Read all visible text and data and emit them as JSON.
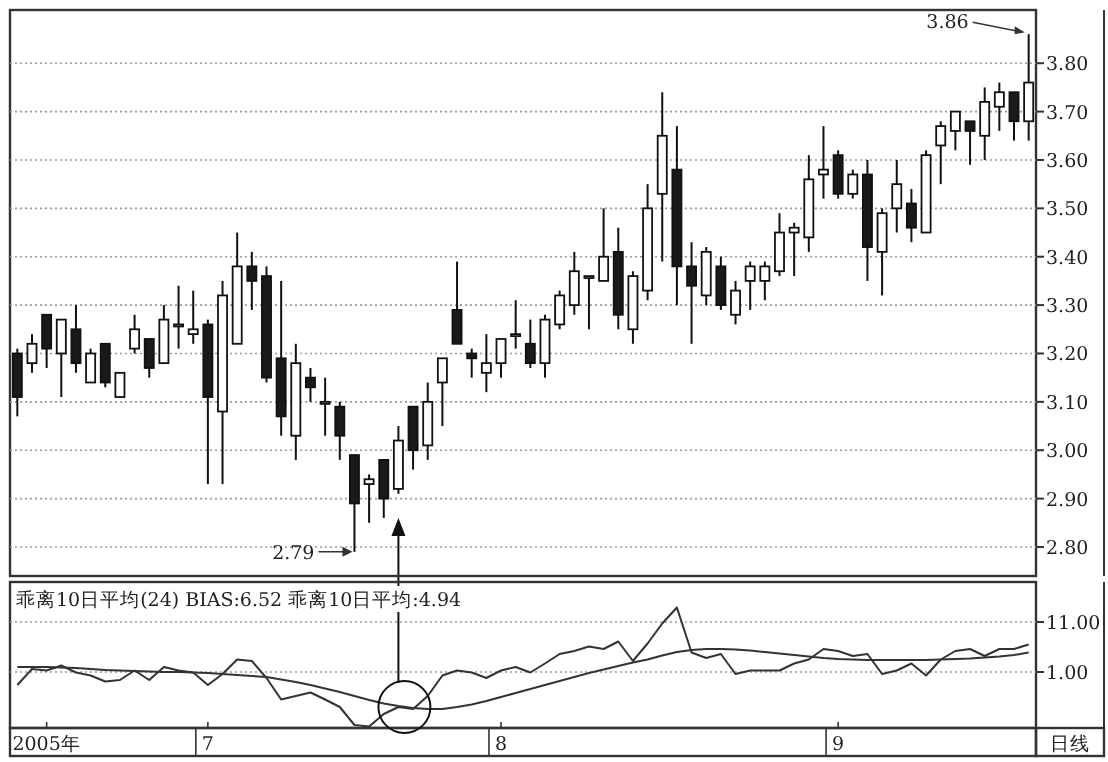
{
  "chart_data": [
    {
      "type": "candlestick",
      "categories": [
        null,
        null,
        null,
        null,
        null,
        null,
        null,
        null,
        null,
        null,
        null,
        null,
        null,
        null,
        null,
        null,
        null,
        null,
        null,
        null,
        null,
        null,
        null,
        null,
        null,
        null,
        null,
        null,
        null,
        null,
        null,
        null,
        null,
        null,
        null,
        null,
        null,
        null,
        null,
        null,
        null,
        null,
        null,
        null,
        null,
        null,
        null,
        null,
        null,
        null,
        null,
        null,
        null,
        null,
        null,
        null,
        null,
        null,
        null,
        null,
        null,
        null,
        null,
        null,
        null,
        null,
        null,
        null,
        null,
        null
      ],
      "ohlc": [
        [
          3.2,
          3.21,
          3.07,
          3.11
        ],
        [
          3.18,
          3.24,
          3.16,
          3.22
        ],
        [
          3.28,
          3.28,
          3.17,
          3.21
        ],
        [
          3.2,
          3.27,
          3.11,
          3.27
        ],
        [
          3.25,
          3.3,
          3.16,
          3.18
        ],
        [
          3.14,
          3.21,
          3.14,
          3.2
        ],
        [
          3.22,
          3.22,
          3.13,
          3.14
        ],
        [
          3.11,
          3.16,
          3.11,
          3.16
        ],
        [
          3.21,
          3.28,
          3.2,
          3.25
        ],
        [
          3.23,
          3.23,
          3.15,
          3.17
        ],
        [
          3.18,
          3.3,
          3.18,
          3.27
        ],
        [
          3.26,
          3.34,
          3.21,
          3.26
        ],
        [
          3.24,
          3.33,
          3.22,
          3.25
        ],
        [
          3.26,
          3.27,
          2.93,
          3.11
        ],
        [
          3.08,
          3.35,
          2.93,
          3.32
        ],
        [
          3.22,
          3.45,
          3.22,
          3.38
        ],
        [
          3.38,
          3.41,
          3.29,
          3.35
        ],
        [
          3.36,
          3.38,
          3.14,
          3.15
        ],
        [
          3.19,
          3.35,
          3.03,
          3.07
        ],
        [
          3.03,
          3.22,
          2.98,
          3.18
        ],
        [
          3.15,
          3.17,
          3.1,
          3.13
        ],
        [
          3.1,
          3.15,
          3.03,
          3.1
        ],
        [
          3.09,
          3.1,
          2.98,
          3.03
        ],
        [
          2.99,
          2.99,
          2.79,
          2.89
        ],
        [
          2.93,
          2.95,
          2.85,
          2.94
        ],
        [
          2.98,
          2.98,
          2.86,
          2.9
        ],
        [
          2.92,
          3.05,
          2.91,
          3.02
        ],
        [
          3.09,
          3.09,
          2.96,
          3.0
        ],
        [
          3.01,
          3.14,
          2.98,
          3.1
        ],
        [
          3.14,
          3.19,
          3.05,
          3.19
        ],
        [
          3.29,
          3.39,
          3.22,
          3.22
        ],
        [
          3.2,
          3.21,
          3.15,
          3.19
        ],
        [
          3.16,
          3.24,
          3.12,
          3.18
        ],
        [
          3.18,
          3.23,
          3.15,
          3.23
        ],
        [
          3.24,
          3.31,
          3.21,
          3.24
        ],
        [
          3.22,
          3.27,
          3.17,
          3.18
        ],
        [
          3.18,
          3.28,
          3.15,
          3.27
        ],
        [
          3.26,
          3.33,
          3.25,
          3.32
        ],
        [
          3.3,
          3.41,
          3.28,
          3.37
        ],
        [
          3.36,
          3.36,
          3.25,
          3.36
        ],
        [
          3.35,
          3.5,
          3.35,
          3.4
        ],
        [
          3.41,
          3.46,
          3.25,
          3.28
        ],
        [
          3.25,
          3.37,
          3.22,
          3.36
        ],
        [
          3.33,
          3.55,
          3.31,
          3.5
        ],
        [
          3.53,
          3.74,
          3.39,
          3.65
        ],
        [
          3.58,
          3.67,
          3.3,
          3.38
        ],
        [
          3.38,
          3.43,
          3.22,
          3.34
        ],
        [
          3.32,
          3.42,
          3.3,
          3.41
        ],
        [
          3.38,
          3.4,
          3.29,
          3.3
        ],
        [
          3.28,
          3.35,
          3.26,
          3.33
        ],
        [
          3.35,
          3.39,
          3.29,
          3.38
        ],
        [
          3.35,
          3.39,
          3.31,
          3.38
        ],
        [
          3.37,
          3.49,
          3.36,
          3.45
        ],
        [
          3.45,
          3.47,
          3.36,
          3.46
        ],
        [
          3.44,
          3.61,
          3.41,
          3.56
        ],
        [
          3.57,
          3.67,
          3.52,
          3.58
        ],
        [
          3.61,
          3.62,
          3.52,
          3.53
        ],
        [
          3.53,
          3.58,
          3.52,
          3.57
        ],
        [
          3.57,
          3.6,
          3.35,
          3.42
        ],
        [
          3.41,
          3.5,
          3.32,
          3.49
        ],
        [
          3.5,
          3.6,
          3.45,
          3.55
        ],
        [
          3.51,
          3.54,
          3.43,
          3.46
        ],
        [
          3.45,
          3.62,
          3.45,
          3.61
        ],
        [
          3.63,
          3.68,
          3.55,
          3.67
        ],
        [
          3.66,
          3.7,
          3.62,
          3.7
        ],
        [
          3.68,
          3.68,
          3.59,
          3.66
        ],
        [
          3.65,
          3.75,
          3.6,
          3.72
        ],
        [
          3.71,
          3.76,
          3.66,
          3.74
        ],
        [
          3.74,
          3.74,
          3.64,
          3.68
        ],
        [
          3.68,
          3.86,
          3.64,
          3.76
        ]
      ],
      "ylim": [
        2.74,
        3.91
      ],
      "yticks": [
        {
          "value": 2.8,
          "label": "2.80"
        },
        {
          "value": 2.9,
          "label": "2.90"
        },
        {
          "value": 3.0,
          "label": "3.00"
        },
        {
          "value": 3.1,
          "label": "3.10"
        },
        {
          "value": 3.2,
          "label": "3.20"
        },
        {
          "value": 3.3,
          "label": "3.30"
        },
        {
          "value": 3.4,
          "label": "3.40"
        },
        {
          "value": 3.5,
          "label": "3.50"
        },
        {
          "value": 3.6,
          "label": "3.60"
        },
        {
          "value": 3.7,
          "label": "3.70"
        },
        {
          "value": 3.8,
          "label": "3.80"
        }
      ],
      "grid": "y",
      "tick_labels": "y",
      "annotations": [
        "3.86",
        "2.79"
      ]
    },
    {
      "type": "line",
      "title": "乖离10日平均(24)  BIAS:6.52  乖离10日平均:4.94",
      "xlabel": "日线",
      "categories": [
        null,
        null,
        "2005年",
        null,
        null,
        null,
        null,
        null,
        null,
        null,
        null,
        null,
        null,
        "7",
        null,
        null,
        null,
        null,
        null,
        null,
        null,
        null,
        null,
        null,
        null,
        null,
        null,
        null,
        null,
        null,
        null,
        null,
        null,
        "8",
        null,
        null,
        null,
        null,
        null,
        null,
        null,
        null,
        null,
        null,
        null,
        null,
        null,
        null,
        null,
        null,
        null,
        null,
        null,
        null,
        null,
        null,
        "9",
        null,
        null,
        null,
        null,
        null,
        null,
        null,
        null,
        null,
        null,
        null,
        null,
        null
      ],
      "series": [
        {
          "color": "#333333",
          "values": [
            -1.6,
            1.6,
            1.3,
            2.3,
            0.9,
            0.3,
            -0.9,
            -0.6,
            1.3,
            -0.6,
            2.0,
            1.3,
            0.9,
            -1.6,
            0.6,
            3.5,
            3.2,
            -0.2,
            -4.5,
            -3.8,
            -3.1,
            -4.5,
            -6.0,
            -9.6,
            -9.9,
            -7.4,
            -6.0,
            -6.4,
            -3.8,
            0.3,
            1.3,
            0.9,
            -0.2,
            1.3,
            2.0,
            0.9,
            2.7,
            4.6,
            5.2,
            6.1,
            5.6,
            7.1,
            3.2,
            6.7,
            10.7,
            13.9,
            4.9,
            3.8,
            4.6,
            0.6,
            1.3,
            1.3,
            1.3,
            2.7,
            3.5,
            5.6,
            5.2,
            4.2,
            4.6,
            0.6,
            1.3,
            2.7,
            0.3,
            3.5,
            5.2,
            5.6,
            4.2,
            5.6,
            5.6,
            6.5
          ]
        },
        {
          "color": "#333333",
          "values": [
            2.0,
            2.0,
            2.0,
            1.9,
            1.8,
            1.6,
            1.4,
            1.3,
            1.2,
            1.1,
            1.0,
            1.0,
            0.9,
            0.8,
            0.6,
            0.4,
            0.2,
            0.0,
            -0.5,
            -1.0,
            -1.6,
            -2.3,
            -3.0,
            -3.8,
            -4.6,
            -5.3,
            -5.8,
            -6.2,
            -6.4,
            -6.4,
            -6.0,
            -5.5,
            -4.8,
            -4.0,
            -3.2,
            -2.4,
            -1.6,
            -0.8,
            0.0,
            0.8,
            1.5,
            2.2,
            2.9,
            3.5,
            4.3,
            5.0,
            5.4,
            5.6,
            5.6,
            5.5,
            5.3,
            5.0,
            4.7,
            4.4,
            4.1,
            3.8,
            3.6,
            3.5,
            3.4,
            3.4,
            3.4,
            3.4,
            3.4,
            3.5,
            3.6,
            3.7,
            3.9,
            4.1,
            4.4,
            4.9
          ]
        }
      ],
      "ylim": [
        -10.2,
        19
      ],
      "yticks": [
        {
          "value": 1,
          "label": "1.00"
        },
        {
          "value": 11,
          "label": "11.00"
        }
      ],
      "grid": "y"
    }
  ]
}
